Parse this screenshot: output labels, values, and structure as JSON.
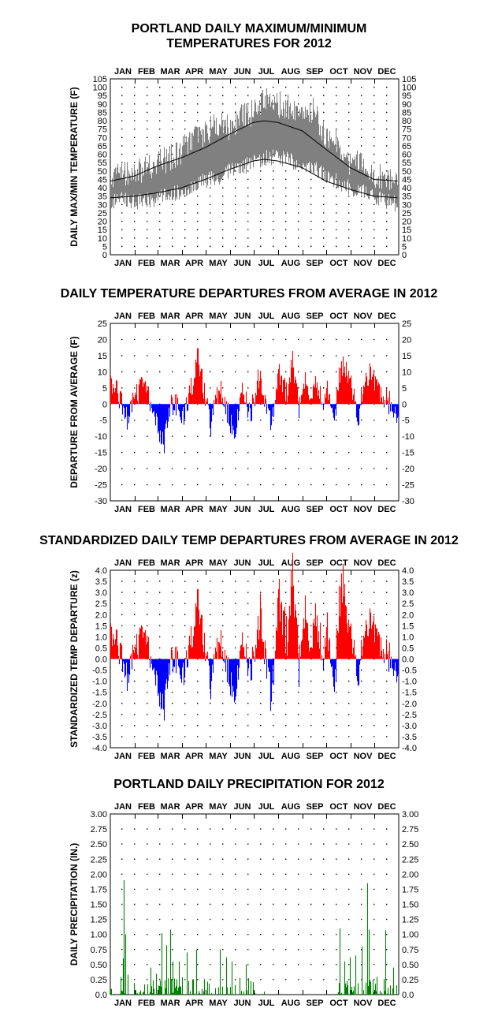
{
  "months": [
    "JAN",
    "FEB",
    "MAR",
    "APR",
    "MAY",
    "JUN",
    "JUL",
    "AUG",
    "SEP",
    "OCT",
    "NOV",
    "DEC"
  ],
  "colors": {
    "minmax": "#808080",
    "normals": "#000000",
    "positive": "#ff0000",
    "negative": "#0000ff",
    "precip": "#008000",
    "dots": "#000000"
  },
  "chart_data": [
    {
      "id": "temps",
      "type": "line",
      "title_line1": "PORTLAND DAILY MAXIMUM/MINIMUM",
      "title_line2": "TEMPERATURES FOR 2012",
      "xlabel": "",
      "ylabel": "DAILY MAX/MIN TEMPERATURE  (F)",
      "ylim": [
        0,
        105
      ],
      "yticks": [
        "0",
        "5",
        "10",
        "15",
        "20",
        "25",
        "30",
        "35",
        "40",
        "45",
        "50",
        "55",
        "60",
        "65",
        "70",
        "75",
        "80",
        "85",
        "90",
        "95",
        "100",
        "105"
      ],
      "series": [
        {
          "role": "daily-max",
          "x": [
            1,
            15,
            32,
            46,
            60,
            74,
            91,
            105,
            121,
            135,
            152,
            166,
            182,
            196,
            213,
            227,
            244,
            258,
            274,
            288,
            305,
            319,
            335,
            350,
            366
          ],
          "values": [
            46,
            50,
            48,
            52,
            55,
            57,
            62,
            70,
            72,
            78,
            76,
            82,
            85,
            92,
            90,
            88,
            84,
            86,
            70,
            68,
            55,
            56,
            48,
            45,
            42
          ]
        },
        {
          "role": "daily-min",
          "x": [
            1,
            15,
            32,
            46,
            60,
            74,
            91,
            105,
            121,
            135,
            152,
            166,
            182,
            196,
            213,
            227,
            244,
            258,
            274,
            288,
            305,
            319,
            335,
            350,
            366
          ],
          "values": [
            32,
            33,
            31,
            32,
            34,
            36,
            38,
            42,
            44,
            46,
            50,
            52,
            55,
            58,
            58,
            57,
            53,
            52,
            46,
            44,
            40,
            38,
            35,
            32,
            30
          ]
        },
        {
          "role": "normal-high",
          "x": [
            1,
            31,
            60,
            91,
            121,
            152,
            182,
            196,
            213,
            244,
            274,
            305,
            335,
            366
          ],
          "values": [
            44,
            47,
            53,
            58,
            64,
            72,
            79,
            80,
            79,
            74,
            63,
            52,
            45,
            44
          ]
        },
        {
          "role": "normal-low",
          "x": [
            1,
            31,
            60,
            91,
            121,
            152,
            182,
            196,
            213,
            244,
            274,
            305,
            335,
            366
          ],
          "values": [
            34,
            35,
            37,
            40,
            45,
            51,
            56,
            57,
            56,
            52,
            44,
            39,
            35,
            34
          ]
        }
      ],
      "grid": true
    },
    {
      "id": "departures",
      "type": "bar",
      "title": "DAILY TEMPERATURE DEPARTURES FROM AVERAGE IN 2012",
      "ylabel": "DEPARTURE FROM AVERAGE  (F)",
      "ylim": [
        -30,
        25
      ],
      "yticks": [
        "-30",
        "-25",
        "-20",
        "-15",
        "-10",
        "-5",
        "0",
        "5",
        "10",
        "15",
        "20",
        "25"
      ],
      "grid": true
    },
    {
      "id": "standardized",
      "type": "bar",
      "title": "STANDARDIZED DAILY TEMP DEPARTURES FROM AVERAGE IN 2012",
      "ylabel": "STANDARDIZED TEMP DEPARTURE  (z)",
      "ylim": [
        -4,
        4
      ],
      "yticks": [
        "-4.0",
        "-3.5",
        "-3.0",
        "-2.5",
        "-2.0",
        "-1.5",
        "-1.0",
        "-0.5",
        "0.0",
        "0.5",
        "1.0",
        "1.5",
        "2.0",
        "2.5",
        "3.0",
        "3.5",
        "4.0"
      ],
      "grid": true
    },
    {
      "id": "precip",
      "type": "bar",
      "title": "PORTLAND DAILY PRECIPITATION FOR 2012",
      "ylabel": "DAILY PRECIPITATION (IN.)",
      "ylim": [
        0,
        3
      ],
      "yticks": [
        "0.0",
        "0.25",
        "0.50",
        "0.75",
        "1.00",
        "1.25",
        "1.50",
        "1.75",
        "2.00",
        "2.25",
        "2.50",
        "2.75",
        "3.00"
      ],
      "grid": true
    }
  ]
}
